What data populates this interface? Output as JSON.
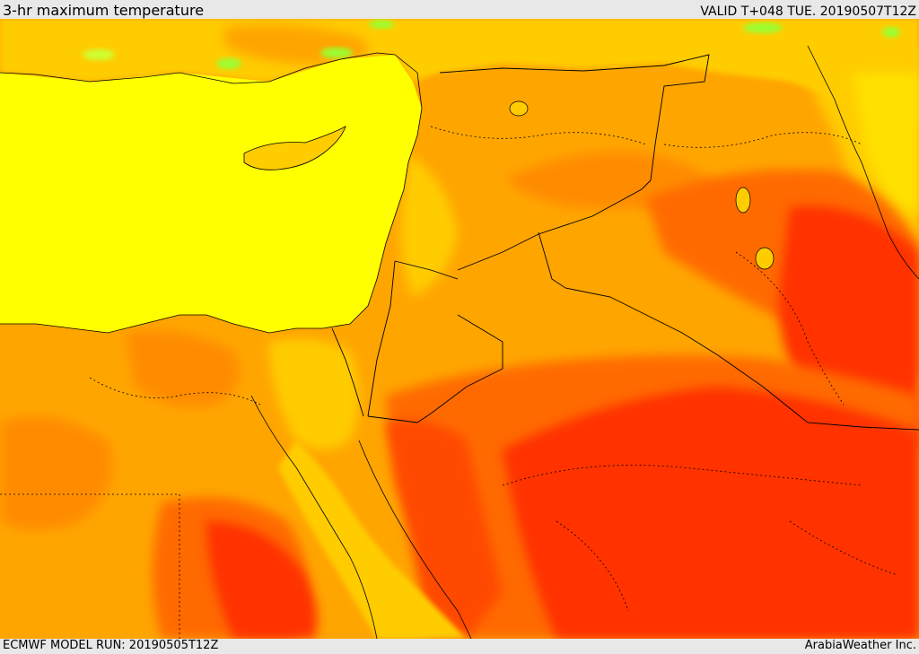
{
  "header": {
    "title": "3-hr maximum temperature",
    "valid": "VALID T+048 TUE. 20190507T12Z"
  },
  "footer": {
    "model_run": "ECMWF MODEL RUN: 20190505T12Z",
    "credit": "ArabiaWeather Inc."
  },
  "colors": {
    "sea": "#ffff00",
    "light_orange": "#ffcc00",
    "orange": "#ffa500",
    "dark_orange": "#ff8c00",
    "red_orange": "#ff6a00",
    "red": "#ff3300",
    "green": "#99ff33",
    "frame": "#e6e6e6"
  }
}
